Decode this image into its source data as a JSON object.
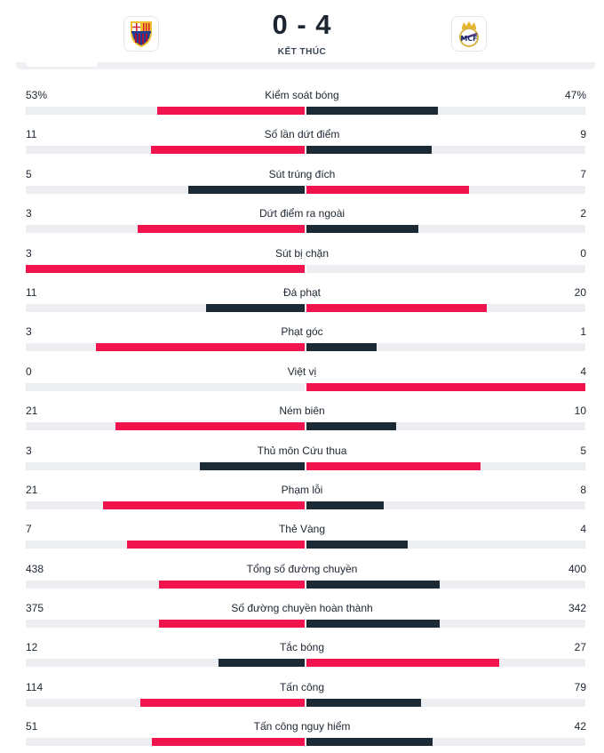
{
  "match": {
    "score": "0 - 4",
    "status": "KẾT THÚC",
    "home_team_logo": "fc-barcelona-crest",
    "away_team_logo": "real-madrid-crest"
  },
  "colors": {
    "winner": "#f0134d",
    "loser": "#1c2a36",
    "track": "#eceef1"
  },
  "stats": [
    {
      "label": "Kiểm soát bóng",
      "home": "53%",
      "away": "47%",
      "home_value": 53,
      "away_value": 47
    },
    {
      "label": "Số lần dứt điểm",
      "home": "11",
      "away": "9",
      "home_value": 11,
      "away_value": 9
    },
    {
      "label": "Sút trúng đích",
      "home": "5",
      "away": "7",
      "home_value": 5,
      "away_value": 7
    },
    {
      "label": "Dứt điểm ra ngoài",
      "home": "3",
      "away": "2",
      "home_value": 3,
      "away_value": 2
    },
    {
      "label": "Sút bị chặn",
      "home": "3",
      "away": "0",
      "home_value": 3,
      "away_value": 0
    },
    {
      "label": "Đá phạt",
      "home": "11",
      "away": "20",
      "home_value": 11,
      "away_value": 20
    },
    {
      "label": "Phạt góc",
      "home": "3",
      "away": "1",
      "home_value": 3,
      "away_value": 1
    },
    {
      "label": "Việt vị",
      "home": "0",
      "away": "4",
      "home_value": 0,
      "away_value": 4
    },
    {
      "label": "Ném biên",
      "home": "21",
      "away": "10",
      "home_value": 21,
      "away_value": 10
    },
    {
      "label": "Thủ môn Cứu thua",
      "home": "3",
      "away": "5",
      "home_value": 3,
      "away_value": 5
    },
    {
      "label": "Phạm lỗi",
      "home": "21",
      "away": "8",
      "home_value": 21,
      "away_value": 8
    },
    {
      "label": "Thẻ Vàng",
      "home": "7",
      "away": "4",
      "home_value": 7,
      "away_value": 4
    },
    {
      "label": "Tổng số đường chuyền",
      "home": "438",
      "away": "400",
      "home_value": 438,
      "away_value": 400
    },
    {
      "label": "Số đường chuyền hoàn thành",
      "home": "375",
      "away": "342",
      "home_value": 375,
      "away_value": 342
    },
    {
      "label": "Tắc bóng",
      "home": "12",
      "away": "27",
      "home_value": 12,
      "away_value": 27
    },
    {
      "label": "Tấn công",
      "home": "114",
      "away": "79",
      "home_value": 114,
      "away_value": 79
    },
    {
      "label": "Tấn công nguy hiểm",
      "home": "51",
      "away": "42",
      "home_value": 51,
      "away_value": 42
    }
  ]
}
